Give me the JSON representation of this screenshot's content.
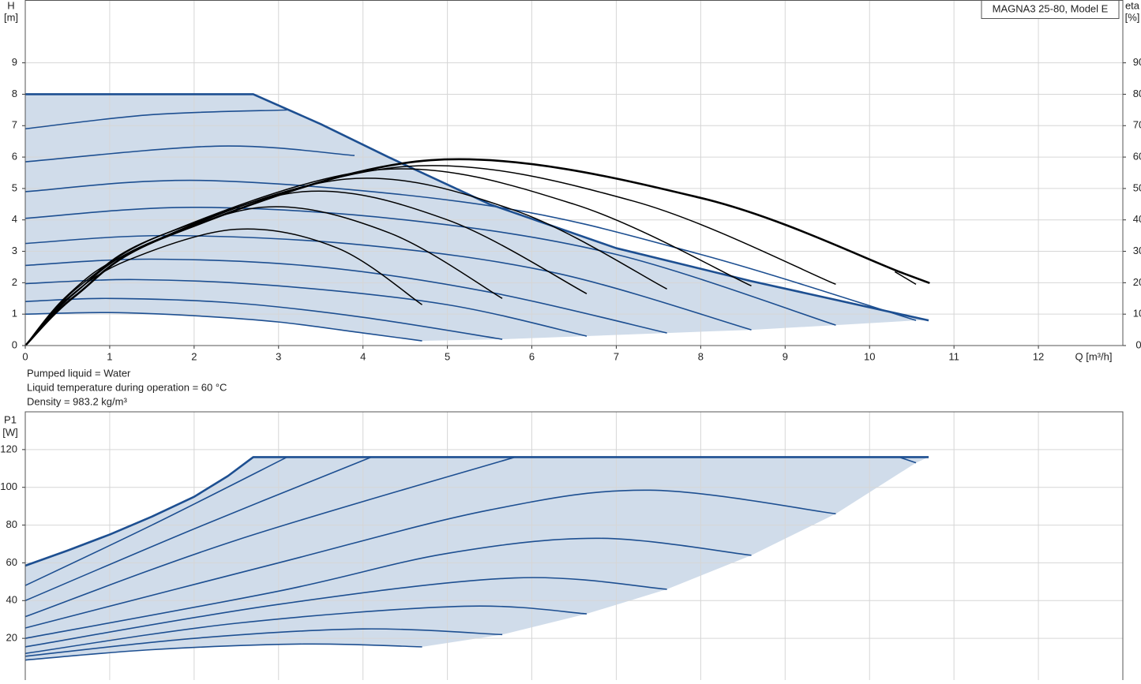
{
  "chart_data": [
    {
      "type": "line",
      "title": "MAGNA3 25-80, Model E",
      "ylabel": "H",
      "yunit": "[m]",
      "y2label": "eta",
      "y2unit": "[%]",
      "xlabel": "Q [m³/h]",
      "notes": [
        "Pumped liquid = Water",
        "Liquid temperature during operation = 60 °C",
        "Density = 983.2 kg/m³"
      ],
      "xlim": [
        0,
        13
      ],
      "xticks": [
        0,
        1,
        2,
        3,
        4,
        5,
        6,
        7,
        8,
        9,
        10,
        11,
        12
      ],
      "ylim": [
        0,
        11
      ],
      "yticks": [
        0,
        1,
        2,
        3,
        4,
        5,
        6,
        7,
        8,
        9
      ],
      "y2lim": [
        0,
        110
      ],
      "y2ticks": [
        0,
        10,
        20,
        30,
        40,
        50,
        60,
        70,
        80,
        90
      ],
      "grid": true,
      "series": [
        {
          "color": "#1d4f91",
          "line_width": 2.6,
          "interpolation": "linear",
          "fill": "#d0dcea",
          "x": [
            0,
            2.7,
            3.5,
            4.3,
            5.5,
            7,
            8.6,
            10.7
          ],
          "values": [
            8,
            8,
            7.05,
            6.0,
            4.5,
            3.1,
            2.05,
            0.8
          ]
        },
        {
          "color": "#1d4f91",
          "line_width": 1.6,
          "x": [
            0,
            1,
            2,
            3,
            4,
            4.7
          ],
          "values": [
            1.0,
            1.05,
            0.95,
            0.75,
            0.4,
            0.15
          ]
        },
        {
          "color": "#1d4f91",
          "line_width": 1.6,
          "x": [
            0,
            1,
            2.5,
            4,
            5.65
          ],
          "values": [
            1.4,
            1.5,
            1.35,
            0.9,
            0.2
          ]
        },
        {
          "color": "#1d4f91",
          "line_width": 1.6,
          "x": [
            0,
            1.3,
            3,
            5,
            6.65
          ],
          "values": [
            1.97,
            2.1,
            1.9,
            1.3,
            0.3
          ]
        },
        {
          "color": "#1d4f91",
          "line_width": 1.6,
          "x": [
            0,
            1.5,
            3.5,
            5.5,
            7.6
          ],
          "values": [
            2.55,
            2.75,
            2.5,
            1.7,
            0.4
          ]
        },
        {
          "color": "#1d4f91",
          "line_width": 1.6,
          "x": [
            0,
            1.7,
            4,
            6.3,
            8.6
          ],
          "values": [
            3.25,
            3.5,
            3.2,
            2.3,
            0.5
          ]
        },
        {
          "color": "#1d4f91",
          "line_width": 1.6,
          "x": [
            0,
            2,
            4.5,
            7,
            9.6
          ],
          "values": [
            4.05,
            4.4,
            4.0,
            2.9,
            0.65
          ]
        },
        {
          "color": "#1d4f91",
          "line_width": 1.6,
          "x": [
            0,
            2.2,
            5.5,
            8,
            10.55
          ],
          "values": [
            4.9,
            5.25,
            4.45,
            2.9,
            0.8
          ]
        },
        {
          "color": "#1d4f91",
          "line_width": 1.6,
          "x": [
            0,
            2.3,
            3.9
          ],
          "values": [
            5.85,
            6.35,
            6.05
          ]
        },
        {
          "color": "#1d4f91",
          "line_width": 1.6,
          "x": [
            0,
            1.5,
            3.1
          ],
          "values": [
            6.9,
            7.35,
            7.5
          ]
        },
        {
          "color": "#000000",
          "line_width": 1.5,
          "axis": "y2",
          "x": [
            0,
            0.5,
            1.2,
            2.5,
            3.7,
            4.7
          ],
          "values": [
            0,
            15,
            27,
            37,
            31,
            13
          ]
        },
        {
          "color": "#000000",
          "line_width": 1.5,
          "axis": "y2",
          "x": [
            0,
            0.5,
            1.2,
            2.8,
            4.3,
            5.65
          ],
          "values": [
            0,
            16,
            29,
            44,
            36,
            15
          ]
        },
        {
          "color": "#000000",
          "line_width": 1.5,
          "axis": "y2",
          "x": [
            0,
            0.6,
            1.5,
            3.3,
            5,
            6.65
          ],
          "values": [
            0,
            18,
            33,
            49,
            40,
            16.5
          ]
        },
        {
          "color": "#000000",
          "line_width": 1.5,
          "axis": "y2",
          "x": [
            0,
            0.6,
            1.5,
            3.8,
            5.8,
            7.6
          ],
          "values": [
            0,
            17,
            33,
            53,
            43,
            18
          ]
        },
        {
          "color": "#000000",
          "line_width": 1.5,
          "axis": "y2",
          "x": [
            0,
            0.6,
            1.6,
            4.2,
            6.5,
            8.6
          ],
          "values": [
            0,
            17,
            35,
            56,
            45,
            19
          ]
        },
        {
          "color": "#000000",
          "line_width": 1.5,
          "axis": "y2",
          "x": [
            0,
            0.6,
            1.6,
            4.5,
            7.2,
            9.6
          ],
          "values": [
            0,
            17,
            35,
            57,
            46,
            19.5
          ]
        },
        {
          "color": "#000000",
          "line_width": 2.6,
          "axis": "y2",
          "x": [
            0,
            0.6,
            1.7,
            4.8,
            8,
            10.4,
            10.7
          ],
          "values": [
            0,
            16,
            35,
            59,
            47,
            23,
            20
          ]
        },
        {
          "color": "#000000",
          "line_width": 1.5,
          "axis": "y2",
          "x": [
            10.3,
            10.55
          ],
          "values": [
            23.5,
            19.5
          ]
        }
      ]
    },
    {
      "type": "line",
      "ylabel": "P1",
      "yunit": "[W]",
      "xlim": [
        0,
        13
      ],
      "ylim": [
        0,
        140
      ],
      "yticks": [
        20,
        40,
        60,
        80,
        100,
        120
      ],
      "grid": true,
      "series": [
        {
          "color": "#1d4f91",
          "line_width": 2.6,
          "interpolation": "linear",
          "fill": "#d0dcea",
          "x": [
            0,
            0.5,
            1,
            1.5,
            2,
            2.4,
            2.7,
            10.7
          ],
          "values": [
            58.5,
            66.5,
            75,
            84.5,
            95,
            106,
            116,
            116
          ]
        },
        {
          "color": "#1d4f91",
          "line_width": 1.6,
          "x": [
            0,
            1.5,
            3.1
          ],
          "values": [
            48,
            80,
            116
          ]
        },
        {
          "color": "#1d4f91",
          "line_width": 1.6,
          "x": [
            0,
            2,
            4.1
          ],
          "values": [
            40,
            78,
            116
          ]
        },
        {
          "color": "#1d4f91",
          "line_width": 1.6,
          "x": [
            0,
            2.5,
            5.8
          ],
          "values": [
            31.5,
            72,
            116
          ]
        },
        {
          "color": "#1d4f91",
          "line_width": 1.6,
          "x": [
            0,
            3,
            5.5,
            7.4,
            9.6
          ],
          "values": [
            25.5,
            60,
            88,
            98.5,
            86
          ]
        },
        {
          "color": "#1d4f91",
          "line_width": 1.6,
          "x": [
            0,
            3,
            5,
            6.8,
            8.6
          ],
          "values": [
            20,
            45,
            65,
            73,
            64
          ]
        },
        {
          "color": "#1d4f91",
          "line_width": 1.6,
          "x": [
            0,
            3,
            5.8,
            7.6
          ],
          "values": [
            15.5,
            38,
            52,
            46
          ]
        },
        {
          "color": "#1d4f91",
          "line_width": 1.6,
          "x": [
            0,
            2.5,
            5.2,
            6.65
          ],
          "values": [
            12,
            28,
            37,
            33
          ]
        },
        {
          "color": "#1d4f91",
          "line_width": 1.6,
          "x": [
            0,
            2,
            4,
            5.65
          ],
          "values": [
            10.5,
            20,
            25,
            22
          ]
        },
        {
          "color": "#1d4f91",
          "line_width": 1.6,
          "x": [
            0,
            1.5,
            3.3,
            4.7
          ],
          "values": [
            8.5,
            14,
            17,
            15.5
          ]
        },
        {
          "color": "#1d4f91",
          "line_width": 1.6,
          "x": [
            10.35,
            10.55
          ],
          "values": [
            116,
            113
          ]
        }
      ]
    }
  ]
}
